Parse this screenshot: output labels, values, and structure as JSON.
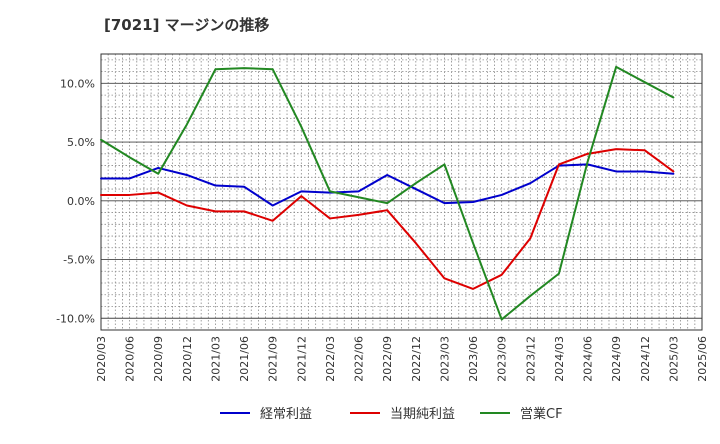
{
  "title": "[7021]  マージンの推移",
  "chart_data": {
    "type": "line",
    "title": "[7021]  マージンの推移",
    "xlabel": "",
    "ylabel": "",
    "x": [
      "2020/03",
      "2020/06",
      "2020/09",
      "2020/12",
      "2021/03",
      "2021/06",
      "2021/09",
      "2021/12",
      "2022/03",
      "2022/06",
      "2022/09",
      "2022/12",
      "2023/03",
      "2023/06",
      "2023/09",
      "2023/12",
      "2024/03",
      "2024/06",
      "2024/09",
      "2024/12",
      "2025/03",
      "2025/06"
    ],
    "yticks": [
      10.0,
      5.0,
      0.0,
      -5.0,
      -10.0
    ],
    "yticklabels": [
      "10.0%",
      "5.0%",
      "0.0%",
      "-5.0%",
      "-10.0%"
    ],
    "ylim": [
      -11.0,
      12.5
    ],
    "grid": true,
    "legend_position": "bottom",
    "series": [
      {
        "name": "経常利益",
        "color": "#0000cc",
        "values": [
          1.9,
          1.9,
          2.8,
          2.2,
          1.3,
          1.2,
          -0.4,
          0.8,
          0.7,
          0.8,
          2.2,
          1.0,
          -0.2,
          -0.1,
          0.5,
          1.5,
          3.0,
          3.1,
          2.5,
          2.5,
          2.3,
          null
        ]
      },
      {
        "name": "当期純利益",
        "color": "#dd0000",
        "values": [
          0.5,
          0.5,
          0.7,
          -0.4,
          -0.9,
          -0.9,
          -1.7,
          0.4,
          -1.5,
          -1.2,
          -0.8,
          -3.6,
          -6.6,
          -7.5,
          -6.3,
          -3.2,
          3.1,
          4.0,
          4.4,
          4.3,
          2.5,
          null
        ]
      },
      {
        "name": "営業CF",
        "color": "#228822",
        "values": [
          5.2,
          3.7,
          2.3,
          6.5,
          11.2,
          11.3,
          11.2,
          6.3,
          0.8,
          0.3,
          -0.2,
          1.5,
          3.1,
          -3.6,
          -10.1,
          -8.1,
          -6.2,
          3.3,
          11.4,
          10.1,
          8.8,
          null
        ]
      }
    ]
  }
}
